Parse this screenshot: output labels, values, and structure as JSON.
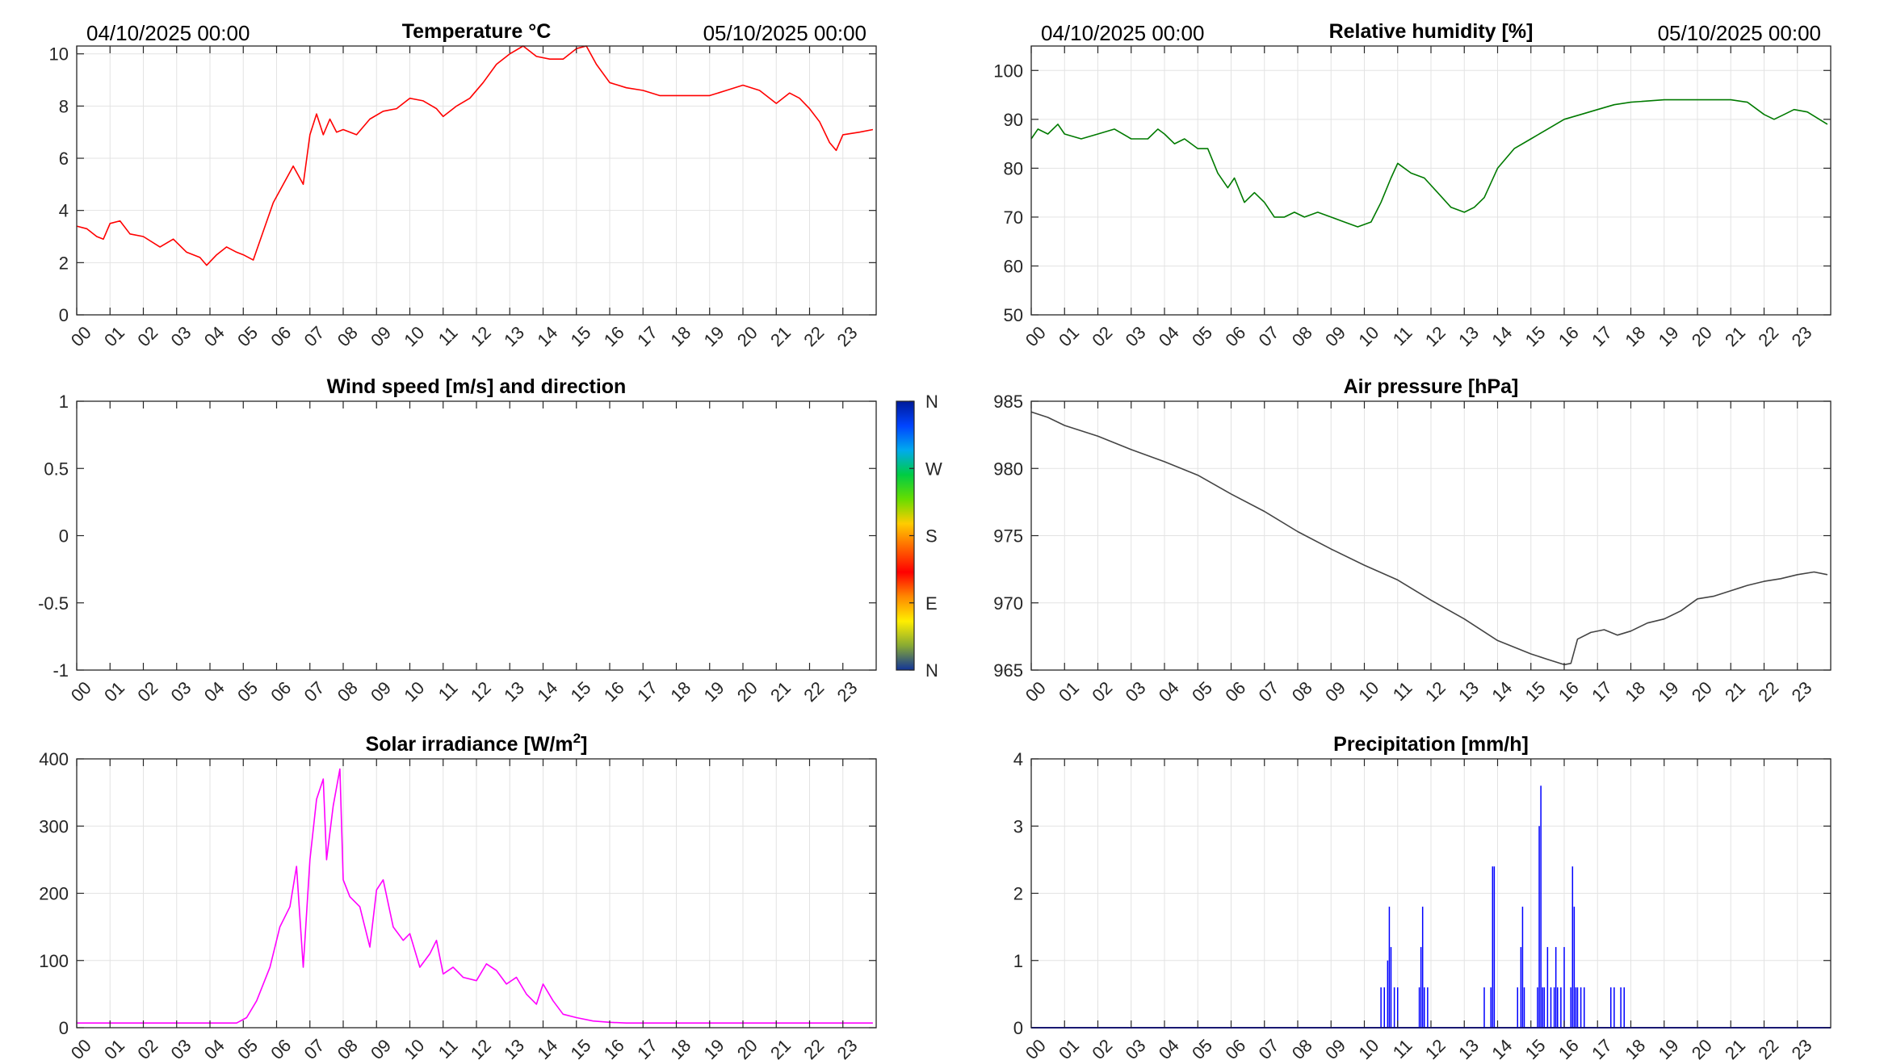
{
  "hours": [
    "00",
    "01",
    "02",
    "03",
    "04",
    "05",
    "06",
    "07",
    "08",
    "09",
    "10",
    "11",
    "12",
    "13",
    "14",
    "15",
    "16",
    "17",
    "18",
    "19",
    "20",
    "21",
    "22",
    "23"
  ],
  "chart_data": [
    {
      "id": "temperature",
      "type": "line",
      "title": "Temperature °C",
      "date_left": "04/10/2025 00:00",
      "date_right": "05/10/2025 00:00",
      "xlim": [
        0,
        24
      ],
      "ylim": [
        0,
        10.3
      ],
      "yticks": [
        "0",
        "2",
        "4",
        "6",
        "8",
        "10"
      ],
      "ytick_values": [
        0,
        2,
        4,
        6,
        8,
        10
      ],
      "grid": true,
      "color": "#ff0000",
      "series": [
        {
          "x": [
            0,
            0.3,
            0.6,
            0.8,
            1.0,
            1.3,
            1.6,
            2.0,
            2.5,
            2.9,
            3.3,
            3.7,
            3.9,
            4.2,
            4.5,
            4.8,
            5.0,
            5.3,
            5.6,
            5.9,
            6.2,
            6.5,
            6.8,
            7.0,
            7.2,
            7.4,
            7.6,
            7.8,
            8.0,
            8.4,
            8.8,
            9.2,
            9.6,
            10.0,
            10.4,
            10.8,
            11.0,
            11.4,
            11.8,
            12.2,
            12.6,
            13.0,
            13.4,
            13.8,
            14.2,
            14.6,
            15.0,
            15.3,
            15.6,
            16.0,
            16.5,
            17.0,
            17.5,
            18.0,
            18.5,
            19.0,
            19.5,
            20.0,
            20.5,
            21.0,
            21.4,
            21.7,
            22.0,
            22.3,
            22.6,
            22.8,
            23.0,
            23.5,
            23.9
          ],
          "y": [
            3.4,
            3.3,
            3.0,
            2.9,
            3.5,
            3.6,
            3.1,
            3.0,
            2.6,
            2.9,
            2.4,
            2.2,
            1.9,
            2.3,
            2.6,
            2.4,
            2.3,
            2.1,
            3.2,
            4.3,
            5.0,
            5.7,
            5.0,
            6.9,
            7.7,
            6.9,
            7.5,
            7.0,
            7.1,
            6.9,
            7.5,
            7.8,
            7.9,
            8.3,
            8.2,
            7.9,
            7.6,
            8.0,
            8.3,
            8.9,
            9.6,
            10.0,
            10.3,
            9.9,
            9.8,
            9.8,
            10.2,
            10.3,
            9.6,
            8.9,
            8.7,
            8.6,
            8.4,
            8.4,
            8.4,
            8.4,
            8.6,
            8.8,
            8.6,
            8.1,
            8.5,
            8.3,
            7.9,
            7.4,
            6.6,
            6.3,
            6.9,
            7.0,
            7.1
          ]
        }
      ]
    },
    {
      "id": "humidity",
      "type": "line",
      "title": "Relative humidity [%]",
      "date_left": "04/10/2025 00:00",
      "date_right": "05/10/2025 00:00",
      "xlim": [
        0,
        24
      ],
      "ylim": [
        50,
        105
      ],
      "yticks": [
        "50",
        "60",
        "70",
        "80",
        "90",
        "100"
      ],
      "ytick_values": [
        50,
        60,
        70,
        80,
        90,
        100
      ],
      "grid": true,
      "color": "#007a00",
      "series": [
        {
          "x": [
            0,
            0.2,
            0.5,
            0.8,
            1.0,
            1.5,
            2.0,
            2.5,
            3.0,
            3.5,
            3.8,
            4.0,
            4.3,
            4.6,
            5.0,
            5.3,
            5.6,
            5.9,
            6.1,
            6.4,
            6.7,
            7.0,
            7.3,
            7.6,
            7.9,
            8.2,
            8.6,
            9.0,
            9.4,
            9.8,
            10.2,
            10.5,
            10.8,
            11.0,
            11.4,
            11.8,
            12.2,
            12.6,
            13.0,
            13.3,
            13.6,
            14.0,
            14.5,
            15.0,
            15.5,
            16.0,
            16.5,
            17.0,
            17.5,
            18.0,
            19.0,
            20.0,
            20.5,
            21.0,
            21.5,
            22.0,
            22.3,
            22.6,
            22.9,
            23.3,
            23.9
          ],
          "y": [
            86,
            88,
            87,
            89,
            87,
            86,
            87,
            88,
            86,
            86,
            88,
            87,
            85,
            86,
            84,
            84,
            79,
            76,
            78,
            73,
            75,
            73,
            70,
            70,
            71,
            70,
            71,
            70,
            69,
            68,
            69,
            73,
            78,
            81,
            79,
            78,
            75,
            72,
            71,
            72,
            74,
            80,
            84,
            86,
            88,
            90,
            91,
            92,
            93,
            93.5,
            94,
            94,
            94,
            94,
            93.5,
            91,
            90,
            91,
            92,
            91.5,
            89
          ]
        }
      ]
    },
    {
      "id": "wind",
      "type": "line",
      "title": "Wind speed [m/s] and direction",
      "xlim": [
        0,
        24
      ],
      "ylim": [
        -1,
        1
      ],
      "yticks": [
        "-1",
        "-0.5",
        "0",
        "0.5",
        "1"
      ],
      "ytick_values": [
        -1,
        -0.5,
        0,
        0.5,
        1
      ],
      "grid": false,
      "series": [],
      "colorbar": {
        "labels": [
          "N",
          "W",
          "S",
          "E",
          "N"
        ],
        "colors": [
          "#001a99",
          "#0044ff",
          "#00aaee",
          "#00cc44",
          "#66dd00",
          "#ffcc00",
          "#ff6600",
          "#ff0000",
          "#ff8800",
          "#ffee00",
          "#88aa33",
          "#113399"
        ]
      }
    },
    {
      "id": "pressure",
      "type": "line",
      "title": "Air pressure [hPa]",
      "xlim": [
        0,
        24
      ],
      "ylim": [
        965,
        985
      ],
      "yticks": [
        "965",
        "970",
        "975",
        "980",
        "985"
      ],
      "ytick_values": [
        965,
        970,
        975,
        980,
        985
      ],
      "grid": true,
      "color": "#444444",
      "series": [
        {
          "x": [
            0,
            0.5,
            1,
            2,
            3,
            4,
            5,
            6,
            7,
            8,
            9,
            10,
            11,
            12,
            13,
            14,
            15,
            15.5,
            16.0,
            16.2,
            16.4,
            16.8,
            17.2,
            17.6,
            18.0,
            18.5,
            19.0,
            19.5,
            20.0,
            20.5,
            21.0,
            21.5,
            22.0,
            22.5,
            23.0,
            23.5,
            23.9
          ],
          "y": [
            984.2,
            983.8,
            983.2,
            982.4,
            981.4,
            980.5,
            979.5,
            978.1,
            976.8,
            975.3,
            974.0,
            972.8,
            971.7,
            970.2,
            968.8,
            967.2,
            966.2,
            965.8,
            965.4,
            965.5,
            967.3,
            967.8,
            968.0,
            967.6,
            967.9,
            968.5,
            968.8,
            969.4,
            970.3,
            970.5,
            970.9,
            971.3,
            971.6,
            971.8,
            972.1,
            972.3,
            972.1
          ]
        }
      ]
    },
    {
      "id": "solar",
      "type": "line",
      "title": "Solar irradiance [W/m",
      "title_sup": "2",
      "title_suffix": "]",
      "xlim": [
        0,
        24
      ],
      "ylim": [
        0,
        400
      ],
      "yticks": [
        "0",
        "100",
        "200",
        "300",
        "400"
      ],
      "ytick_values": [
        0,
        100,
        200,
        300,
        400
      ],
      "grid": true,
      "color": "#ff00ff",
      "series": [
        {
          "x": [
            0,
            1,
            2,
            3,
            4,
            4.8,
            5.1,
            5.4,
            5.8,
            6.1,
            6.4,
            6.6,
            6.8,
            7.0,
            7.2,
            7.4,
            7.5,
            7.7,
            7.9,
            8.0,
            8.2,
            8.5,
            8.8,
            9.0,
            9.2,
            9.5,
            9.8,
            10.0,
            10.3,
            10.6,
            10.8,
            11.0,
            11.3,
            11.6,
            12.0,
            12.3,
            12.6,
            12.9,
            13.2,
            13.5,
            13.8,
            14.0,
            14.3,
            14.6,
            15.0,
            15.5,
            16.0,
            16.5,
            17,
            18,
            19,
            20,
            21,
            22,
            23,
            23.9
          ],
          "y": [
            7,
            7,
            7,
            7,
            7,
            7,
            15,
            40,
            90,
            150,
            180,
            240,
            90,
            250,
            340,
            370,
            250,
            330,
            385,
            220,
            195,
            180,
            120,
            205,
            220,
            150,
            130,
            140,
            90,
            110,
            130,
            80,
            90,
            75,
            70,
            95,
            85,
            65,
            75,
            50,
            35,
            65,
            40,
            20,
            15,
            10,
            8,
            7,
            7,
            7,
            7,
            7,
            7,
            7,
            7,
            7
          ]
        }
      ]
    },
    {
      "id": "precip",
      "type": "bar",
      "title": "Precipitation [mm/h]",
      "xlim": [
        0,
        24
      ],
      "ylim": [
        0,
        4
      ],
      "yticks": [
        "0",
        "1",
        "2",
        "3",
        "4"
      ],
      "ytick_values": [
        0,
        1,
        2,
        3,
        4
      ],
      "grid": true,
      "color": "#0000ff",
      "series": [
        {
          "x": [
            10.5,
            10.6,
            10.7,
            10.75,
            10.8,
            10.9,
            11.0,
            11.65,
            11.7,
            11.75,
            11.8,
            11.9,
            13.6,
            13.8,
            13.85,
            13.9,
            14.6,
            14.7,
            14.75,
            14.8,
            15.2,
            15.25,
            15.3,
            15.35,
            15.4,
            15.5,
            15.6,
            15.7,
            15.75,
            15.8,
            15.9,
            16.0,
            16.2,
            16.25,
            16.3,
            16.35,
            16.4,
            16.5,
            16.6,
            17.4,
            17.5,
            17.7,
            17.8
          ],
          "y": [
            0.6,
            0.6,
            1.0,
            1.8,
            1.2,
            0.6,
            0.6,
            0.6,
            1.2,
            1.8,
            0.6,
            0.6,
            0.6,
            0.6,
            2.4,
            2.4,
            0.6,
            1.2,
            1.8,
            0.6,
            0.6,
            3.0,
            3.6,
            0.6,
            0.6,
            1.2,
            0.6,
            0.6,
            1.2,
            0.6,
            0.6,
            1.2,
            0.6,
            2.4,
            1.8,
            0.6,
            0.6,
            0.6,
            0.6,
            0.6,
            0.6,
            0.6,
            0.6
          ]
        }
      ]
    }
  ]
}
